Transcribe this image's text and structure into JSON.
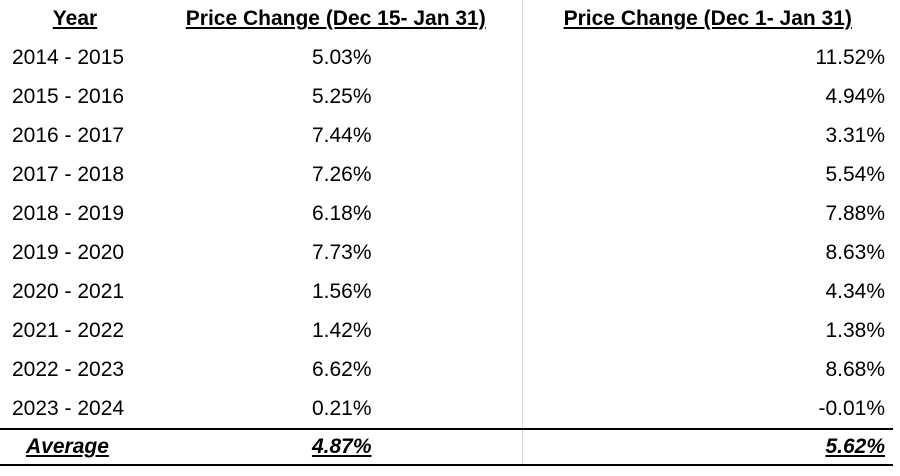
{
  "table": {
    "header": [
      "Year",
      "Price Change (Dec 15- Jan 31)",
      "Price Change (Dec 1- Jan 31)"
    ],
    "rows": [
      [
        "2014 - 2015",
        "5.03%",
        "11.52%"
      ],
      [
        "2015 - 2016",
        "5.25%",
        "4.94%"
      ],
      [
        "2016 - 2017",
        "7.44%",
        "3.31%"
      ],
      [
        "2017 - 2018",
        "7.26%",
        "5.54%"
      ],
      [
        "2018 - 2019",
        "6.18%",
        "7.88%"
      ],
      [
        "2019 - 2020",
        "7.73%",
        "8.63%"
      ],
      [
        "2020 - 2021",
        "1.56%",
        "4.34%"
      ],
      [
        "2021 - 2022",
        "1.42%",
        "1.38%"
      ],
      [
        "2022 - 2023",
        "6.62%",
        "8.68%"
      ],
      [
        "2023 - 2024",
        "0.21%",
        "-0.01%"
      ]
    ],
    "footer": [
      "Average",
      "4.87%",
      "5.62%"
    ]
  }
}
